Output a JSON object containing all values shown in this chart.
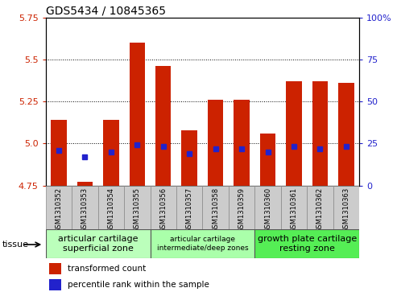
{
  "title": "GDS5434 / 10845365",
  "samples": [
    "GSM1310352",
    "GSM1310353",
    "GSM1310354",
    "GSM1310355",
    "GSM1310356",
    "GSM1310357",
    "GSM1310358",
    "GSM1310359",
    "GSM1310360",
    "GSM1310361",
    "GSM1310362",
    "GSM1310363"
  ],
  "bar_values": [
    5.14,
    4.77,
    5.14,
    5.6,
    5.46,
    5.08,
    5.26,
    5.26,
    5.06,
    5.37,
    5.37,
    5.36
  ],
  "blue_values": [
    21,
    17,
    20,
    24,
    23,
    19,
    22,
    22,
    20,
    23,
    22,
    23
  ],
  "ylim": [
    4.75,
    5.75
  ],
  "right_ylim": [
    0,
    100
  ],
  "yticks_left": [
    4.75,
    5.0,
    5.25,
    5.5,
    5.75
  ],
  "yticks_right": [
    0,
    25,
    50,
    75,
    100
  ],
  "bar_color": "#cc2200",
  "blue_color": "#2222cc",
  "bar_bottom": 4.75,
  "groups": [
    {
      "label": "articular cartilage\nsuperficial zone",
      "indices": [
        0,
        1,
        2,
        3
      ],
      "color": "#bbffbb",
      "fontsize": 8
    },
    {
      "label": "articular cartilage\nintermediate/deep zones",
      "indices": [
        4,
        5,
        6,
        7
      ],
      "color": "#aaffaa",
      "fontsize": 6.5
    },
    {
      "label": "growth plate cartilage\nresting zone",
      "indices": [
        8,
        9,
        10,
        11
      ],
      "color": "#55ee55",
      "fontsize": 8
    }
  ],
  "tissue_label": "tissue",
  "legend_red": "transformed count",
  "legend_blue": "percentile rank within the sample",
  "title_fontsize": 10,
  "left_tick_color": "#cc2200",
  "right_tick_color": "#2222cc",
  "ytick_label_format": [
    4.75,
    5.0,
    5.25,
    5.5,
    5.75
  ]
}
